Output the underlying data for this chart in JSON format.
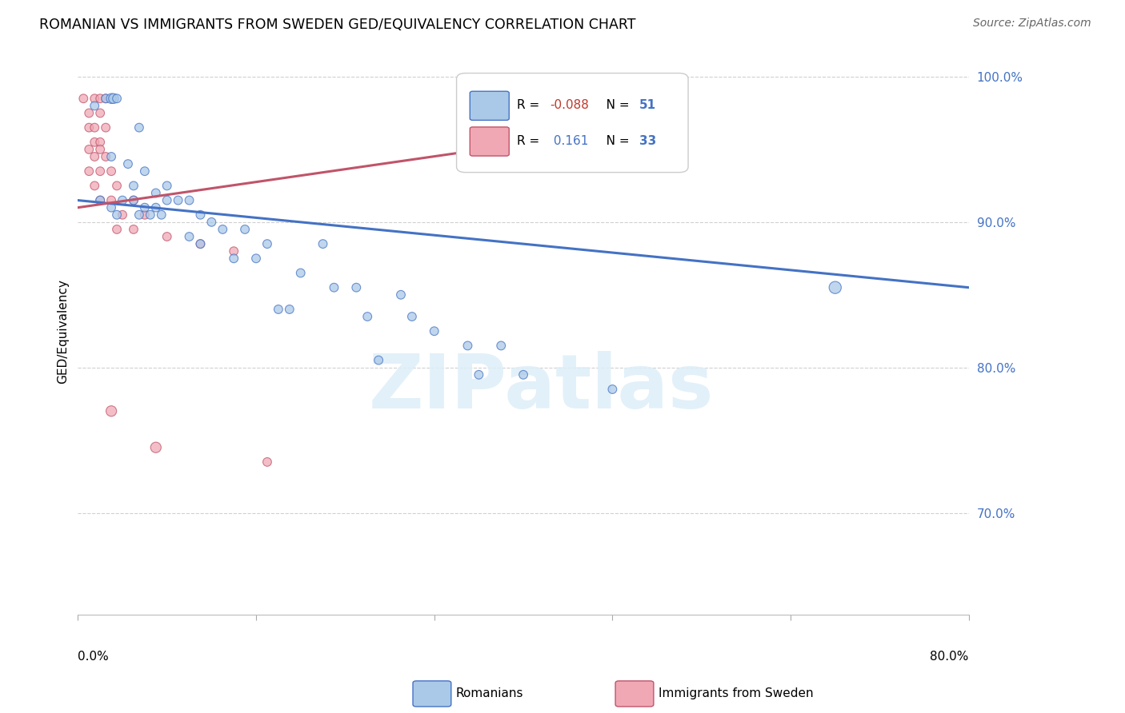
{
  "title": "ROMANIAN VS IMMIGRANTS FROM SWEDEN GED/EQUIVALENCY CORRELATION CHART",
  "source": "Source: ZipAtlas.com",
  "ylabel": "GED/Equivalency",
  "ylabel_right_labels": [
    100.0,
    90.0,
    80.0,
    70.0
  ],
  "x_min": 0.0,
  "x_max": 80.0,
  "y_min": 63.0,
  "y_max": 102.0,
  "blue_R": -0.088,
  "blue_N": 51,
  "pink_R": 0.161,
  "pink_N": 33,
  "blue_color": "#aac9e8",
  "pink_color": "#f0a8b5",
  "blue_line_color": "#4472c4",
  "pink_line_color": "#c0546a",
  "blue_line_x": [
    0.0,
    80.0
  ],
  "blue_line_y": [
    91.5,
    85.5
  ],
  "pink_line_x": [
    0.0,
    50.0
  ],
  "pink_line_y": [
    91.0,
    96.5
  ],
  "watermark_text": "ZIPatlas",
  "blue_dots": [
    [
      1.5,
      98.0
    ],
    [
      2.5,
      98.5
    ],
    [
      3.0,
      98.5
    ],
    [
      3.2,
      98.5
    ],
    [
      3.5,
      98.5
    ],
    [
      5.5,
      96.5
    ],
    [
      3.0,
      94.5
    ],
    [
      4.5,
      94.0
    ],
    [
      5.0,
      92.5
    ],
    [
      6.0,
      93.5
    ],
    [
      7.0,
      92.0
    ],
    [
      8.0,
      92.5
    ],
    [
      2.0,
      91.5
    ],
    [
      3.0,
      91.0
    ],
    [
      4.0,
      91.5
    ],
    [
      5.0,
      91.5
    ],
    [
      6.0,
      91.0
    ],
    [
      7.0,
      91.0
    ],
    [
      8.0,
      91.5
    ],
    [
      9.0,
      91.5
    ],
    [
      10.0,
      91.5
    ],
    [
      3.5,
      90.5
    ],
    [
      5.5,
      90.5
    ],
    [
      6.5,
      90.5
    ],
    [
      7.5,
      90.5
    ],
    [
      11.0,
      90.5
    ],
    [
      12.0,
      90.0
    ],
    [
      13.0,
      89.5
    ],
    [
      15.0,
      89.5
    ],
    [
      10.0,
      89.0
    ],
    [
      11.0,
      88.5
    ],
    [
      17.0,
      88.5
    ],
    [
      22.0,
      88.5
    ],
    [
      14.0,
      87.5
    ],
    [
      16.0,
      87.5
    ],
    [
      20.0,
      86.5
    ],
    [
      23.0,
      85.5
    ],
    [
      25.0,
      85.5
    ],
    [
      29.0,
      85.0
    ],
    [
      18.0,
      84.0
    ],
    [
      19.0,
      84.0
    ],
    [
      26.0,
      83.5
    ],
    [
      30.0,
      83.5
    ],
    [
      32.0,
      82.5
    ],
    [
      35.0,
      81.5
    ],
    [
      38.0,
      81.5
    ],
    [
      27.0,
      80.5
    ],
    [
      36.0,
      79.5
    ],
    [
      40.0,
      79.5
    ],
    [
      48.0,
      78.5
    ],
    [
      68.0,
      85.5
    ]
  ],
  "blue_dot_sizes": [
    60,
    60,
    80,
    80,
    60,
    60,
    60,
    60,
    60,
    60,
    60,
    60,
    60,
    60,
    60,
    60,
    60,
    60,
    60,
    60,
    60,
    60,
    60,
    60,
    60,
    60,
    60,
    60,
    60,
    60,
    60,
    60,
    60,
    60,
    60,
    60,
    60,
    60,
    60,
    60,
    60,
    60,
    60,
    60,
    60,
    60,
    60,
    60,
    60,
    60,
    120
  ],
  "pink_dots": [
    [
      0.5,
      98.5
    ],
    [
      1.5,
      98.5
    ],
    [
      2.0,
      98.5
    ],
    [
      2.5,
      98.5
    ],
    [
      1.0,
      97.5
    ],
    [
      2.0,
      97.5
    ],
    [
      1.0,
      96.5
    ],
    [
      1.5,
      96.5
    ],
    [
      2.5,
      96.5
    ],
    [
      1.5,
      95.5
    ],
    [
      2.0,
      95.5
    ],
    [
      1.0,
      95.0
    ],
    [
      2.0,
      95.0
    ],
    [
      1.5,
      94.5
    ],
    [
      2.5,
      94.5
    ],
    [
      1.0,
      93.5
    ],
    [
      2.0,
      93.5
    ],
    [
      3.0,
      93.5
    ],
    [
      1.5,
      92.5
    ],
    [
      3.5,
      92.5
    ],
    [
      2.0,
      91.5
    ],
    [
      3.0,
      91.5
    ],
    [
      5.0,
      91.5
    ],
    [
      4.0,
      90.5
    ],
    [
      6.0,
      90.5
    ],
    [
      3.5,
      89.5
    ],
    [
      5.0,
      89.5
    ],
    [
      8.0,
      89.0
    ],
    [
      11.0,
      88.5
    ],
    [
      14.0,
      88.0
    ],
    [
      3.0,
      77.0
    ],
    [
      7.0,
      74.5
    ],
    [
      17.0,
      73.5
    ]
  ],
  "pink_dot_sizes": [
    60,
    60,
    60,
    60,
    60,
    60,
    60,
    60,
    60,
    60,
    60,
    60,
    60,
    60,
    60,
    60,
    60,
    60,
    60,
    60,
    60,
    60,
    60,
    60,
    60,
    60,
    60,
    60,
    60,
    60,
    90,
    90,
    60
  ]
}
